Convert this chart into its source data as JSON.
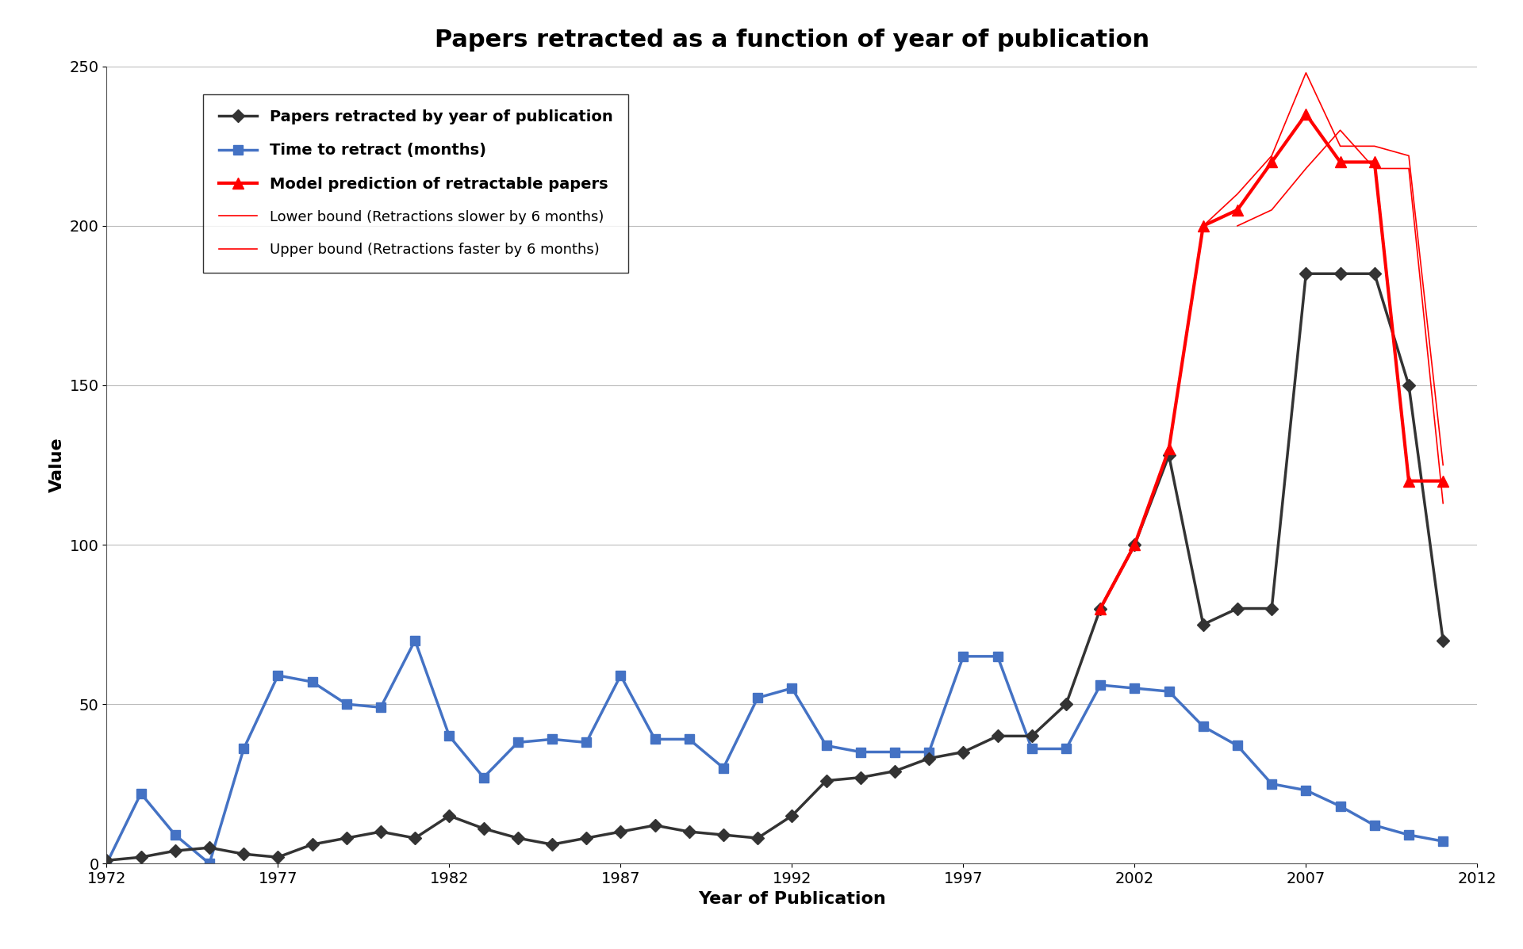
{
  "title": "Papers retracted as a function of year of publication",
  "xlabel": "Year of Publication",
  "ylabel": "Value",
  "xlim": [
    1972,
    2012
  ],
  "ylim": [
    0,
    250
  ],
  "yticks": [
    0,
    50,
    100,
    150,
    200,
    250
  ],
  "xticks": [
    1972,
    1977,
    1982,
    1987,
    1992,
    1997,
    2002,
    2007,
    2012
  ],
  "papers_retracted": {
    "x": [
      1972,
      1973,
      1974,
      1975,
      1976,
      1977,
      1978,
      1979,
      1980,
      1981,
      1982,
      1983,
      1984,
      1985,
      1986,
      1987,
      1988,
      1989,
      1990,
      1991,
      1992,
      1993,
      1994,
      1995,
      1996,
      1997,
      1998,
      1999,
      2000,
      2001,
      2002,
      2003,
      2004,
      2005,
      2006,
      2007,
      2008,
      2009,
      2010,
      2011
    ],
    "y": [
      1,
      2,
      4,
      5,
      3,
      2,
      6,
      8,
      10,
      8,
      15,
      11,
      8,
      6,
      8,
      10,
      12,
      10,
      9,
      8,
      15,
      26,
      27,
      29,
      33,
      35,
      40,
      40,
      50,
      80,
      100,
      128,
      75,
      80,
      80,
      185,
      185,
      185,
      150,
      70
    ],
    "color": "#333333",
    "linewidth": 2.5,
    "marker": "D",
    "markersize": 8,
    "label": "Papers retracted by year of publication"
  },
  "time_to_retract": {
    "x": [
      1972,
      1973,
      1974,
      1975,
      1976,
      1977,
      1978,
      1979,
      1980,
      1981,
      1982,
      1983,
      1984,
      1985,
      1986,
      1987,
      1988,
      1989,
      1990,
      1991,
      1992,
      1993,
      1994,
      1995,
      1996,
      1997,
      1998,
      1999,
      2000,
      2001,
      2002,
      2003,
      2004,
      2005,
      2006,
      2007,
      2008,
      2009,
      2010,
      2011
    ],
    "y": [
      0,
      22,
      9,
      0,
      36,
      59,
      57,
      50,
      49,
      70,
      40,
      27,
      38,
      39,
      38,
      59,
      39,
      39,
      30,
      52,
      55,
      37,
      35,
      35,
      35,
      65,
      65,
      36,
      36,
      56,
      55,
      54,
      43,
      37,
      25,
      23,
      18,
      12,
      9,
      7
    ],
    "color": "#4472C4",
    "linewidth": 2.5,
    "marker": "s",
    "markersize": 9,
    "label": "Time to retract (months)"
  },
  "model_prediction": {
    "x": [
      2001,
      2002,
      2003,
      2004,
      2005,
      2006,
      2007,
      2008,
      2009,
      2010,
      2011
    ],
    "y": [
      80,
      100,
      130,
      200,
      205,
      220,
      235,
      220,
      220,
      120,
      120
    ],
    "color": "#FF0000",
    "linewidth": 3.0,
    "marker": "^",
    "markersize": 10,
    "label": "Model prediction of retractable papers"
  },
  "lower_bound": {
    "x": [
      2005,
      2006,
      2007,
      2008,
      2009,
      2010,
      2011
    ],
    "y": [
      200,
      205,
      218,
      230,
      218,
      218,
      113
    ],
    "color": "#FF0000",
    "linewidth": 1.2,
    "label": "Lower bound (Retractions slower by 6 months)"
  },
  "upper_bound": {
    "x": [
      2004,
      2005,
      2006,
      2007,
      2008,
      2009,
      2010,
      2011
    ],
    "y": [
      200,
      210,
      222,
      248,
      225,
      225,
      222,
      125
    ],
    "color": "#FF0000",
    "linewidth": 1.2,
    "label": "Upper bound (Retractions faster by 6 months)"
  },
  "background_color": "#FFFFFF",
  "legend_fontsize": 14,
  "title_fontsize": 22,
  "axis_label_fontsize": 16,
  "tick_fontsize": 14
}
